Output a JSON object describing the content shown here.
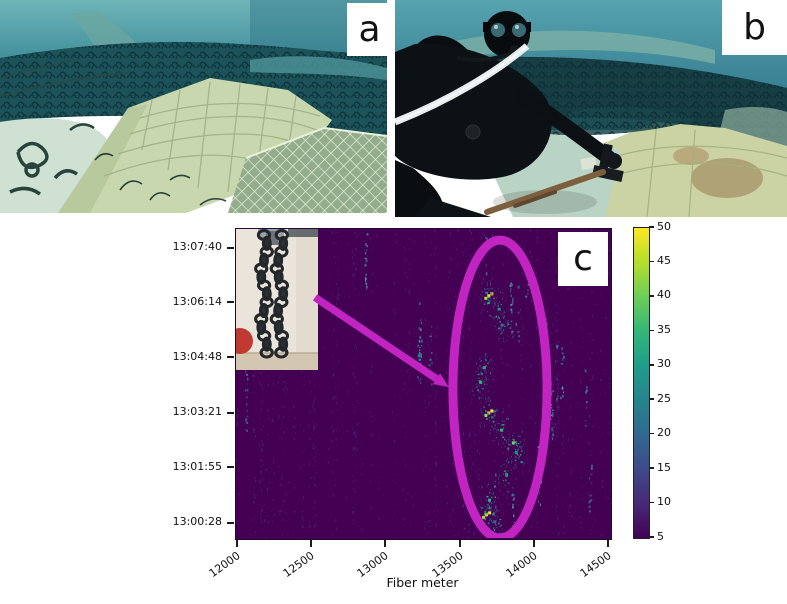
{
  "panels": {
    "a": {
      "label": "a"
    },
    "b": {
      "label": "b"
    },
    "c": {
      "label": "c"
    }
  },
  "chart_data": {
    "type": "heatmap",
    "title": "",
    "xlabel": "Fiber meter",
    "ylabel": "",
    "x_ticks": [
      12000,
      12500,
      13000,
      13500,
      14000,
      14500
    ],
    "x_range": [
      11987,
      14513
    ],
    "y_tick_labels": [
      "13:07:40",
      "13:06:14",
      "13:04:48",
      "13:03:21",
      "13:01:55",
      "13:00:28"
    ],
    "y_range_seconds_after_13h": [
      4,
      491
    ],
    "grid": false,
    "colormap": "viridis",
    "background_value_color": "#440154",
    "colorbar": {
      "min": 5,
      "max": 50,
      "ticks": [
        50,
        45,
        40,
        35,
        30,
        25,
        20,
        15,
        10,
        5
      ]
    },
    "hotspots": [
      {
        "fiber_m": 13690,
        "time": "13:06:26",
        "intensity": 50
      },
      {
        "fiber_m": 13760,
        "time": "13:06:05",
        "intensity": 28
      },
      {
        "fiber_m": 13780,
        "time": "13:05:40",
        "intensity": 24
      },
      {
        "fiber_m": 13660,
        "time": "13:04:33",
        "intensity": 30
      },
      {
        "fiber_m": 13635,
        "time": "13:04:10",
        "intensity": 34
      },
      {
        "fiber_m": 13690,
        "time": "13:03:22",
        "intensity": 50
      },
      {
        "fiber_m": 13775,
        "time": "13:02:55",
        "intensity": 30
      },
      {
        "fiber_m": 13855,
        "time": "13:02:35",
        "intensity": 42
      },
      {
        "fiber_m": 13875,
        "time": "13:02:20",
        "intensity": 28
      },
      {
        "fiber_m": 13810,
        "time": "13:01:45",
        "intensity": 26
      },
      {
        "fiber_m": 13695,
        "time": "13:01:05",
        "intensity": 30
      },
      {
        "fiber_m": 13675,
        "time": "13:00:42",
        "intensity": 46
      },
      {
        "fiber_m": 13730,
        "time": "13:00:31",
        "intensity": 24
      }
    ],
    "annotations": {
      "accent_color": "#c224c2",
      "ellipse": {
        "center_fiber_m": 13772,
        "center_time": "13:03:58",
        "radius_m": 317,
        "radius_s": 234
      },
      "arrow": {
        "from_fiber_m": 12526,
        "from_time": "13:06:22",
        "to_fiber_m": 13428,
        "to_time": "13:04:01"
      },
      "inset_icon": "chain-photo"
    }
  }
}
